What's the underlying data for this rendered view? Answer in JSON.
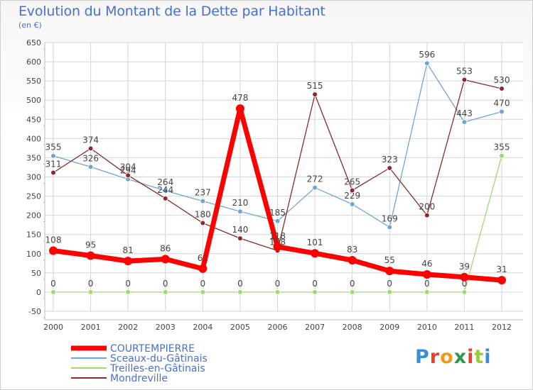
{
  "title": "Evolution du Montant de la Dette par Habitant",
  "subtitle": "(en €)",
  "logo_text": "Proxiti",
  "chart_data": {
    "type": "line",
    "x": [
      "2000",
      "2001",
      "2002",
      "2003",
      "2004",
      "2005",
      "2006",
      "2007",
      "2008",
      "2009",
      "2010",
      "2011",
      "2012"
    ],
    "ylim": [
      -50,
      650
    ],
    "yticks": [
      -50,
      0,
      50,
      100,
      150,
      200,
      250,
      300,
      350,
      400,
      450,
      500,
      550,
      600,
      650
    ],
    "grid": true,
    "legend_position": "bottom-left",
    "series": [
      {
        "name": "COURTEMPIERRE",
        "color": "#ff0000",
        "emphasis": true,
        "values": [
          108,
          95,
          81,
          86,
          61,
          478,
          118,
          101,
          83,
          55,
          46,
          39,
          31
        ]
      },
      {
        "name": "Sceaux-du-Gâtinais",
        "color": "#6ea5d6",
        "values": [
          355,
          326,
          294,
          264,
          237,
          210,
          185,
          272,
          229,
          169,
          596,
          443,
          470
        ]
      },
      {
        "name": "Treilles-en-Gâtinais",
        "color": "#9ddc6e",
        "values": [
          0,
          0,
          0,
          0,
          0,
          0,
          0,
          0,
          0,
          0,
          0,
          0,
          355
        ]
      },
      {
        "name": "Mondreville",
        "color": "#8a2a2a",
        "values": [
          311,
          374,
          304,
          244,
          180,
          140,
          108,
          515,
          265,
          323,
          200,
          553,
          530
        ]
      }
    ]
  }
}
